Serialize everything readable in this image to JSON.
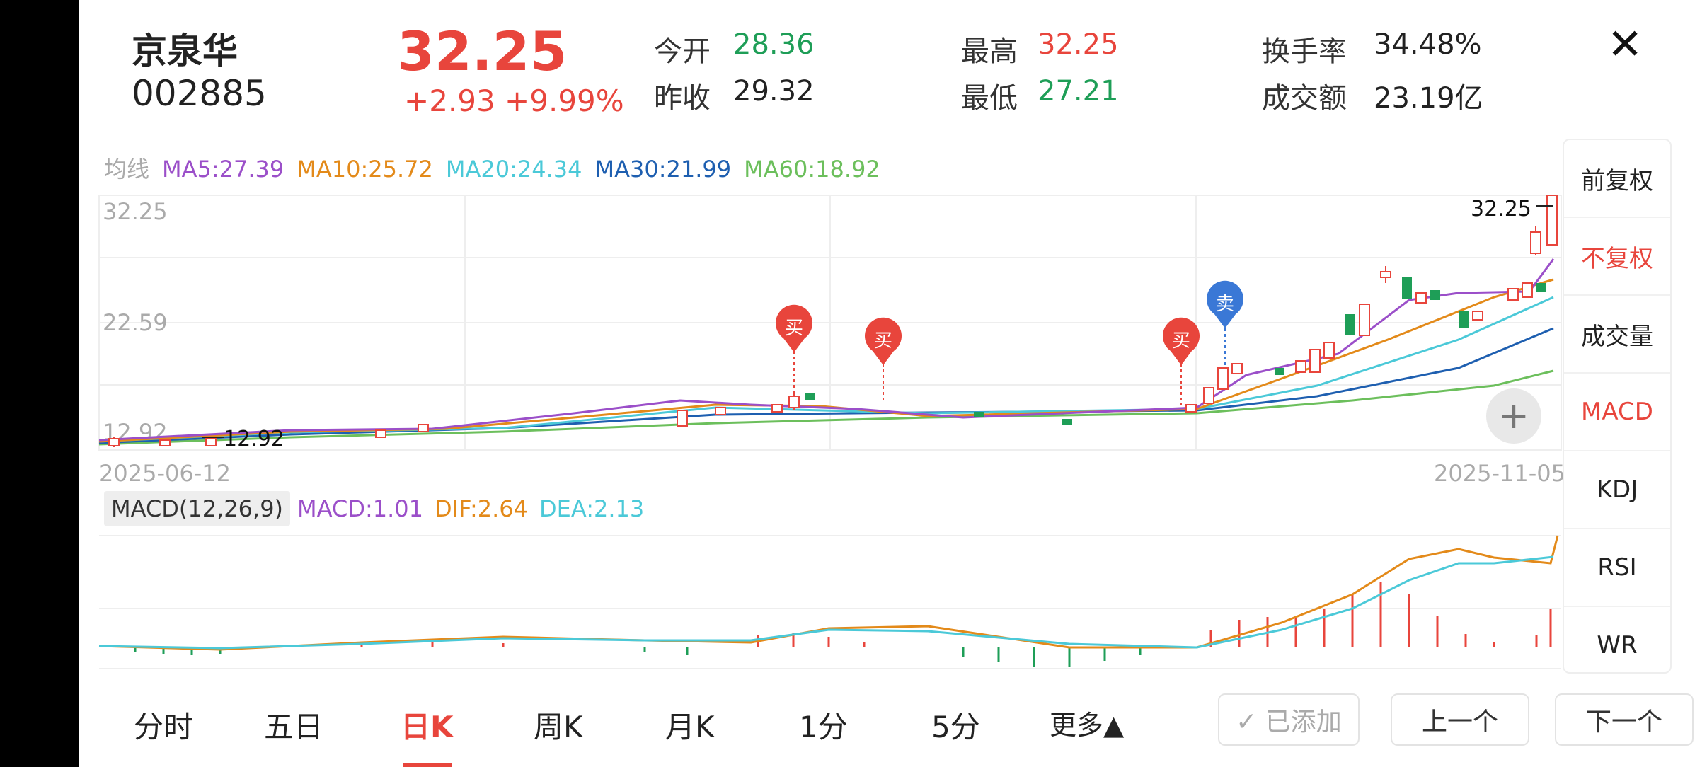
{
  "stock": {
    "name": "京泉华",
    "code": "002885",
    "price": "32.25",
    "change": "+2.93 +9.99%"
  },
  "stats": {
    "open_label": "今开",
    "open": "28.36",
    "prev_label": "昨收",
    "prev": "29.32",
    "high_label": "最高",
    "high": "32.25",
    "low_label": "最低",
    "low": "27.21",
    "turnover_label": "换手率",
    "turnover": "34.48%",
    "amount_label": "成交额",
    "amount": "23.19亿"
  },
  "ma": {
    "label": "均线",
    "ma5": "MA5:27.39",
    "ma10": "MA10:25.72",
    "ma20": "MA20:24.34",
    "ma30": "MA30:21.99",
    "ma60": "MA60:18.92"
  },
  "chart": {
    "y_top": "32.25",
    "y_mid": "22.59",
    "y_bottom": "12.92",
    "x_start": "2025-06-12",
    "x_end": "2025-11-05",
    "max_marker": "32.25",
    "min_marker": "12.92",
    "signals": [
      {
        "label": "买",
        "type": "buy"
      },
      {
        "label": "买",
        "type": "buy"
      },
      {
        "label": "买",
        "type": "buy"
      },
      {
        "label": "卖",
        "type": "sell"
      }
    ]
  },
  "macd": {
    "title": "MACD(12,26,9)",
    "macd": "MACD:1.01",
    "dif": "DIF:2.64",
    "dea": "DEA:2.13"
  },
  "side_menu": [
    "前复权",
    "不复权",
    "成交量",
    "MACD",
    "KDJ",
    "RSI",
    "WR"
  ],
  "tabs": [
    "分时",
    "五日",
    "日K",
    "周K",
    "月K",
    "1分",
    "5分",
    "更多▲"
  ],
  "buttons": {
    "added": "✓ 已添加",
    "prev": "上一个",
    "next": "下一个"
  },
  "colors": {
    "up": "#e8453c",
    "down": "#1e9e57",
    "ma5": "#9b4fc9",
    "ma10": "#e38a1a",
    "ma20": "#4bc9d8",
    "ma30": "#1e5fb0",
    "ma60": "#6cbf5c"
  }
}
